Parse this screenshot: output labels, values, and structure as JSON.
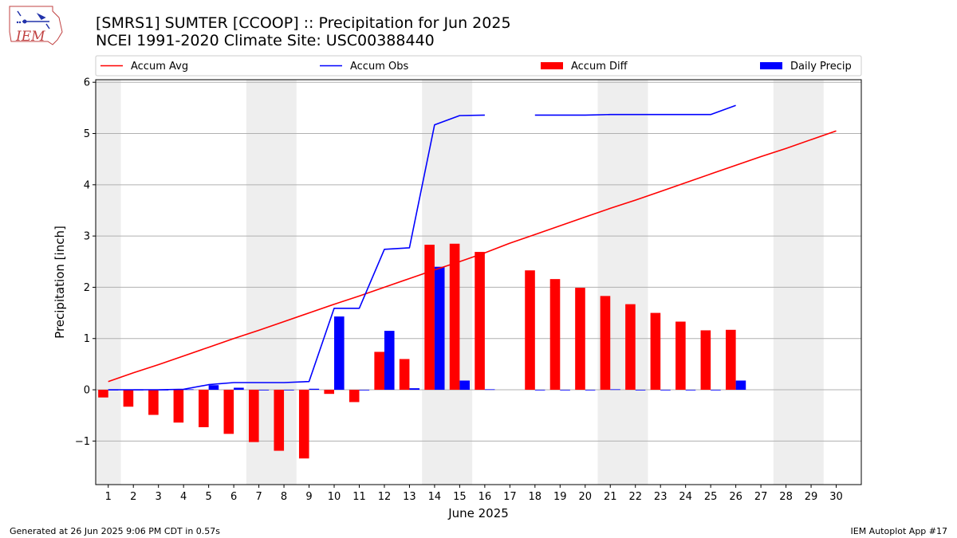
{
  "header": {
    "logo_text": "IEM",
    "title_line1": "[SMRS1] SUMTER [CCOOP] :: Precipitation for Jun 2025",
    "title_line2": "NCEI 1991-2020 Climate Site: USC00388440"
  },
  "footer": {
    "left": "Generated at 26 Jun 2025 9:06 PM CDT in 0.57s",
    "right": "IEM Autoplot App #17"
  },
  "colors": {
    "accum_avg": "#ff0000",
    "accum_obs": "#0000ff",
    "accum_diff": "#ff0000",
    "daily_precip": "#0000ff",
    "weekend_shade": "#eeeeee",
    "grid": "#b0b0b0"
  },
  "chart_data": {
    "type": "bar",
    "xlabel": "June 2025",
    "ylabel": "Precipitation [inch]",
    "xlim": [
      0.5,
      31.0
    ],
    "ylim": [
      -1.85,
      6.05
    ],
    "yticks": [
      -1,
      0,
      1,
      2,
      3,
      4,
      5,
      6
    ],
    "ytick_labels": [
      "−1",
      "0",
      "1",
      "2",
      "3",
      "4",
      "5",
      "6"
    ],
    "x": [
      1,
      2,
      3,
      4,
      5,
      6,
      7,
      8,
      9,
      10,
      11,
      12,
      13,
      14,
      15,
      16,
      17,
      18,
      19,
      20,
      21,
      22,
      23,
      24,
      25,
      26,
      27,
      28,
      29,
      30
    ],
    "grid": "horizontal",
    "legend_placement": "top",
    "shaded_day_ranges": [
      [
        0.5,
        1.5
      ],
      [
        6.5,
        8.5
      ],
      [
        13.5,
        15.5
      ],
      [
        20.5,
        22.5
      ],
      [
        27.5,
        29.5
      ]
    ],
    "legend": [
      {
        "name": "Accum Avg",
        "kind": "line",
        "color": "#ff0000"
      },
      {
        "name": "Accum Obs",
        "kind": "line",
        "color": "#0000ff"
      },
      {
        "name": "Accum Diff",
        "kind": "bar",
        "color": "#ff0000"
      },
      {
        "name": "Daily Precip",
        "kind": "bar",
        "color": "#0000ff"
      }
    ],
    "series": [
      {
        "name": "Accum Avg",
        "type": "line",
        "values": [
          0.16,
          0.33,
          0.49,
          0.66,
          0.83,
          1.0,
          1.16,
          1.33,
          1.5,
          1.67,
          1.83,
          2.0,
          2.17,
          2.34,
          2.5,
          2.67,
          2.86,
          3.03,
          3.2,
          3.37,
          3.54,
          3.7,
          3.87,
          4.04,
          4.21,
          4.38,
          4.55,
          4.71,
          4.88,
          5.05
        ]
      },
      {
        "name": "Accum Obs",
        "type": "line",
        "values": [
          0.0,
          0.0,
          0.0,
          0.01,
          0.1,
          0.14,
          0.14,
          0.14,
          0.16,
          1.59,
          1.59,
          2.74,
          2.77,
          5.17,
          5.35,
          5.36,
          null,
          5.36,
          5.36,
          5.36,
          5.37,
          5.37,
          5.37,
          5.37,
          5.37,
          5.55,
          null,
          null,
          null,
          null
        ]
      },
      {
        "name": "Accum Diff",
        "type": "bar",
        "values": [
          -0.15,
          -0.33,
          -0.49,
          -0.64,
          -0.73,
          -0.86,
          -1.02,
          -1.19,
          -1.34,
          -0.08,
          -0.24,
          0.74,
          0.6,
          2.83,
          2.85,
          2.69,
          null,
          2.33,
          2.16,
          1.99,
          1.83,
          1.67,
          1.5,
          1.33,
          1.16,
          1.17,
          null,
          null,
          null,
          null
        ]
      },
      {
        "name": "Daily Precip",
        "type": "bar",
        "values": [
          0.0,
          0.0,
          0.0,
          0.01,
          0.09,
          0.04,
          0.0,
          0.0,
          0.02,
          1.43,
          0.0,
          1.15,
          0.03,
          2.4,
          0.18,
          0.01,
          null,
          0.0,
          0.0,
          0.0,
          0.01,
          0.0,
          0.0,
          0.0,
          0.0,
          0.18,
          null,
          null,
          null,
          null
        ]
      }
    ]
  }
}
